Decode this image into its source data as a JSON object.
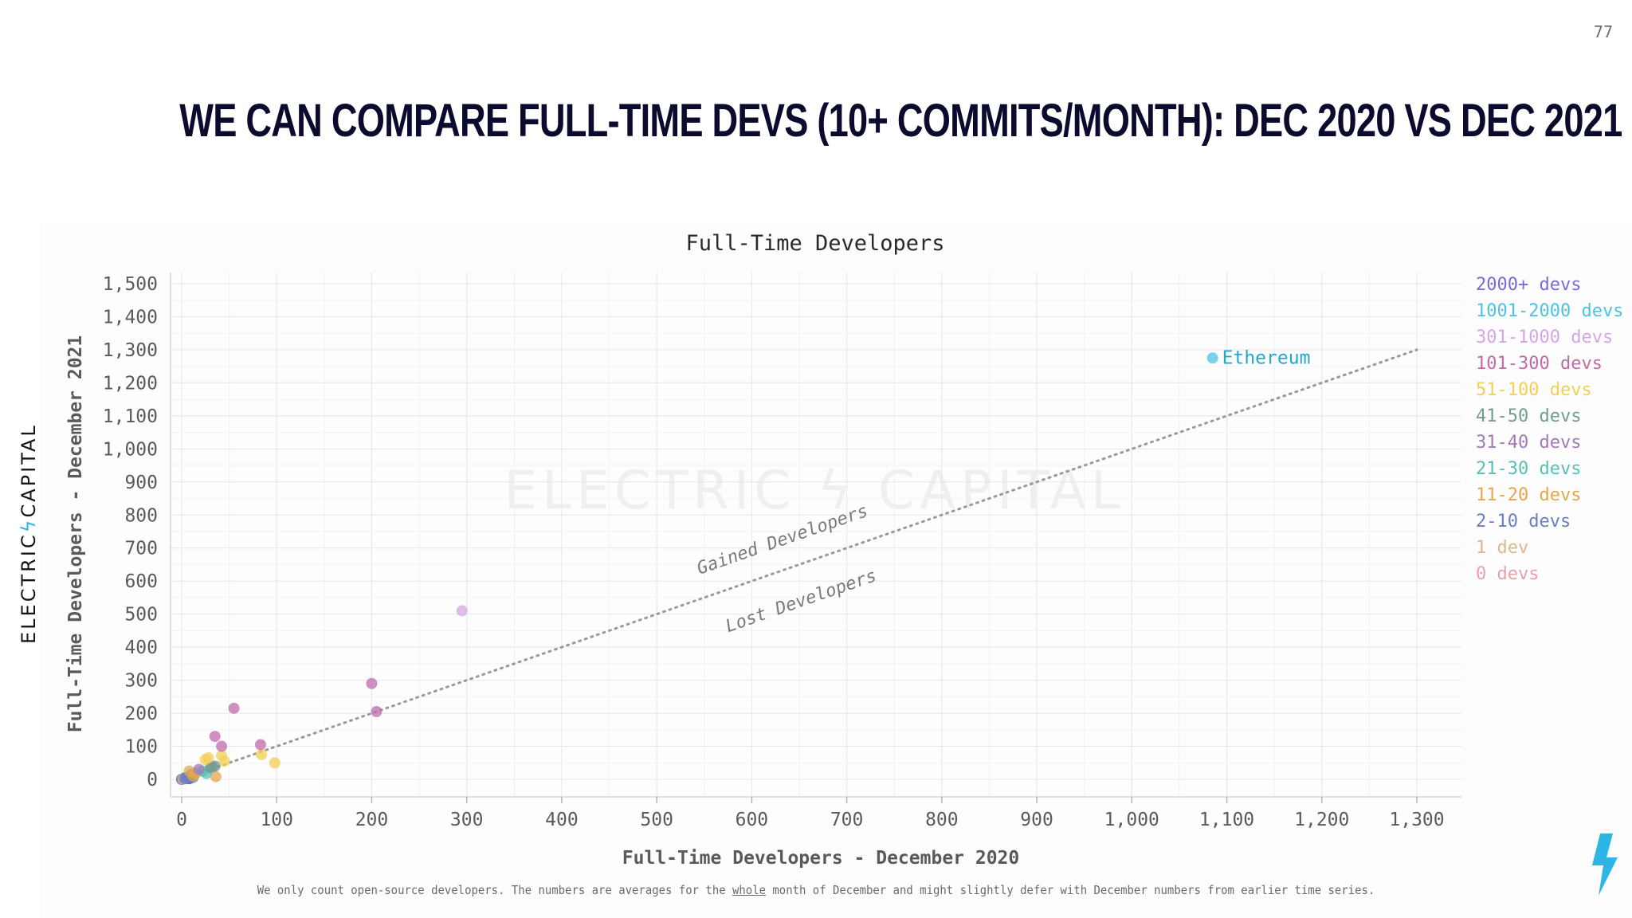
{
  "page_number": "77",
  "slide_title": "We can compare full-time devs (10+ commits/month): Dec 2020 vs Dec 2021",
  "brand": {
    "left": "ELECTRIC",
    "bolt": "ϟ",
    "right": "CAPITAL"
  },
  "watermark": "ELECTRIC ϟ CAPITAL",
  "footnote": {
    "before": "We only count open-source developers. The numbers are averages for the ",
    "underlined": "whole",
    "after": " month of December and might slightly defer with December numbers from earlier time series."
  },
  "colors": {
    "brand_bolt": "#2cb6e6",
    "diagonal": "#9a9a9a",
    "grid": "#e6e6e9"
  },
  "chart_data": {
    "type": "scatter",
    "title": "Full-Time Developers",
    "xlabel": "Full-Time Developers - December 2020",
    "ylabel": "Full-Time Developers - December 2021",
    "xlim": [
      0,
      1300
    ],
    "ylim": [
      0,
      1500
    ],
    "x_ticks": [
      0,
      100,
      200,
      300,
      400,
      500,
      600,
      700,
      800,
      900,
      1000,
      1100,
      1200,
      1300
    ],
    "x_tick_labels": [
      "0",
      "100",
      "200",
      "300",
      "400",
      "500",
      "600",
      "700",
      "800",
      "900",
      "1,000",
      "1,100",
      "1,200",
      "1,300"
    ],
    "y_ticks": [
      0,
      100,
      200,
      300,
      400,
      500,
      600,
      700,
      800,
      900,
      1000,
      1100,
      1200,
      1300,
      1400,
      1500
    ],
    "y_tick_labels": [
      "0",
      "100",
      "200",
      "300",
      "400",
      "500",
      "600",
      "700",
      "800",
      "900",
      "1,000",
      "1,100",
      "1,200",
      "1,300",
      "1,400",
      "1,500"
    ],
    "grid": true,
    "legend_position": "right",
    "reference_line": {
      "from": [
        0,
        0
      ],
      "to": [
        1300,
        1300
      ],
      "style": "dotted"
    },
    "region_labels": [
      "Gained Developers",
      "Lost Developers"
    ],
    "series": [
      {
        "name": "2000+ devs",
        "color": "#7b68d9",
        "points": []
      },
      {
        "name": "1001-2000 devs",
        "color": "#4cc3e3",
        "points": [
          {
            "x": 1085,
            "y": 1275,
            "label": "Ethereum"
          }
        ]
      },
      {
        "name": "301-1000 devs",
        "color": "#d5a6e6",
        "points": [
          {
            "x": 295,
            "y": 510
          }
        ]
      },
      {
        "name": "101-300 devs",
        "color": "#c06aa8",
        "points": [
          {
            "x": 200,
            "y": 290
          },
          {
            "x": 205,
            "y": 205
          },
          {
            "x": 55,
            "y": 215
          },
          {
            "x": 35,
            "y": 130
          },
          {
            "x": 42,
            "y": 100
          },
          {
            "x": 83,
            "y": 105
          }
        ]
      },
      {
        "name": "51-100 devs",
        "color": "#f2cf55",
        "points": [
          {
            "x": 98,
            "y": 50
          },
          {
            "x": 84,
            "y": 75
          },
          {
            "x": 28,
            "y": 65
          },
          {
            "x": 45,
            "y": 55
          },
          {
            "x": 25,
            "y": 60
          },
          {
            "x": 42,
            "y": 72
          }
        ]
      },
      {
        "name": "41-50 devs",
        "color": "#6f9e8c",
        "points": [
          {
            "x": 35,
            "y": 40
          },
          {
            "x": 30,
            "y": 35
          }
        ]
      },
      {
        "name": "31-40 devs",
        "color": "#a07ab5",
        "points": [
          {
            "x": 32,
            "y": 38
          },
          {
            "x": 18,
            "y": 30
          }
        ]
      },
      {
        "name": "21-30 devs",
        "color": "#55c1b5",
        "points": [
          {
            "x": 22,
            "y": 25
          },
          {
            "x": 26,
            "y": 18
          }
        ]
      },
      {
        "name": "11-20 devs",
        "color": "#e2a84d",
        "points": [
          {
            "x": 15,
            "y": 18
          },
          {
            "x": 12,
            "y": 10
          },
          {
            "x": 36,
            "y": 8
          },
          {
            "x": 8,
            "y": 25
          }
        ]
      },
      {
        "name": "2-10 devs",
        "color": "#6a7fbf",
        "points": [
          {
            "x": 5,
            "y": 5
          },
          {
            "x": 8,
            "y": 3
          },
          {
            "x": 12,
            "y": 6
          },
          {
            "x": 3,
            "y": 2
          },
          {
            "x": 10,
            "y": 15
          }
        ]
      },
      {
        "name": "1 dev",
        "color": "#d9bb8a",
        "points": [
          {
            "x": 2,
            "y": 1
          }
        ]
      },
      {
        "name": "0 devs",
        "color": "#e8a0aa",
        "points": [
          {
            "x": 1,
            "y": 0
          }
        ]
      }
    ],
    "dark_cluster": {
      "color": "#3f57b8",
      "points": [
        {
          "x": 0,
          "y": 0
        },
        {
          "x": 2,
          "y": 1
        },
        {
          "x": 4,
          "y": 2
        },
        {
          "x": 6,
          "y": 3
        },
        {
          "x": 8,
          "y": 2
        },
        {
          "x": 3,
          "y": 4
        }
      ]
    }
  }
}
